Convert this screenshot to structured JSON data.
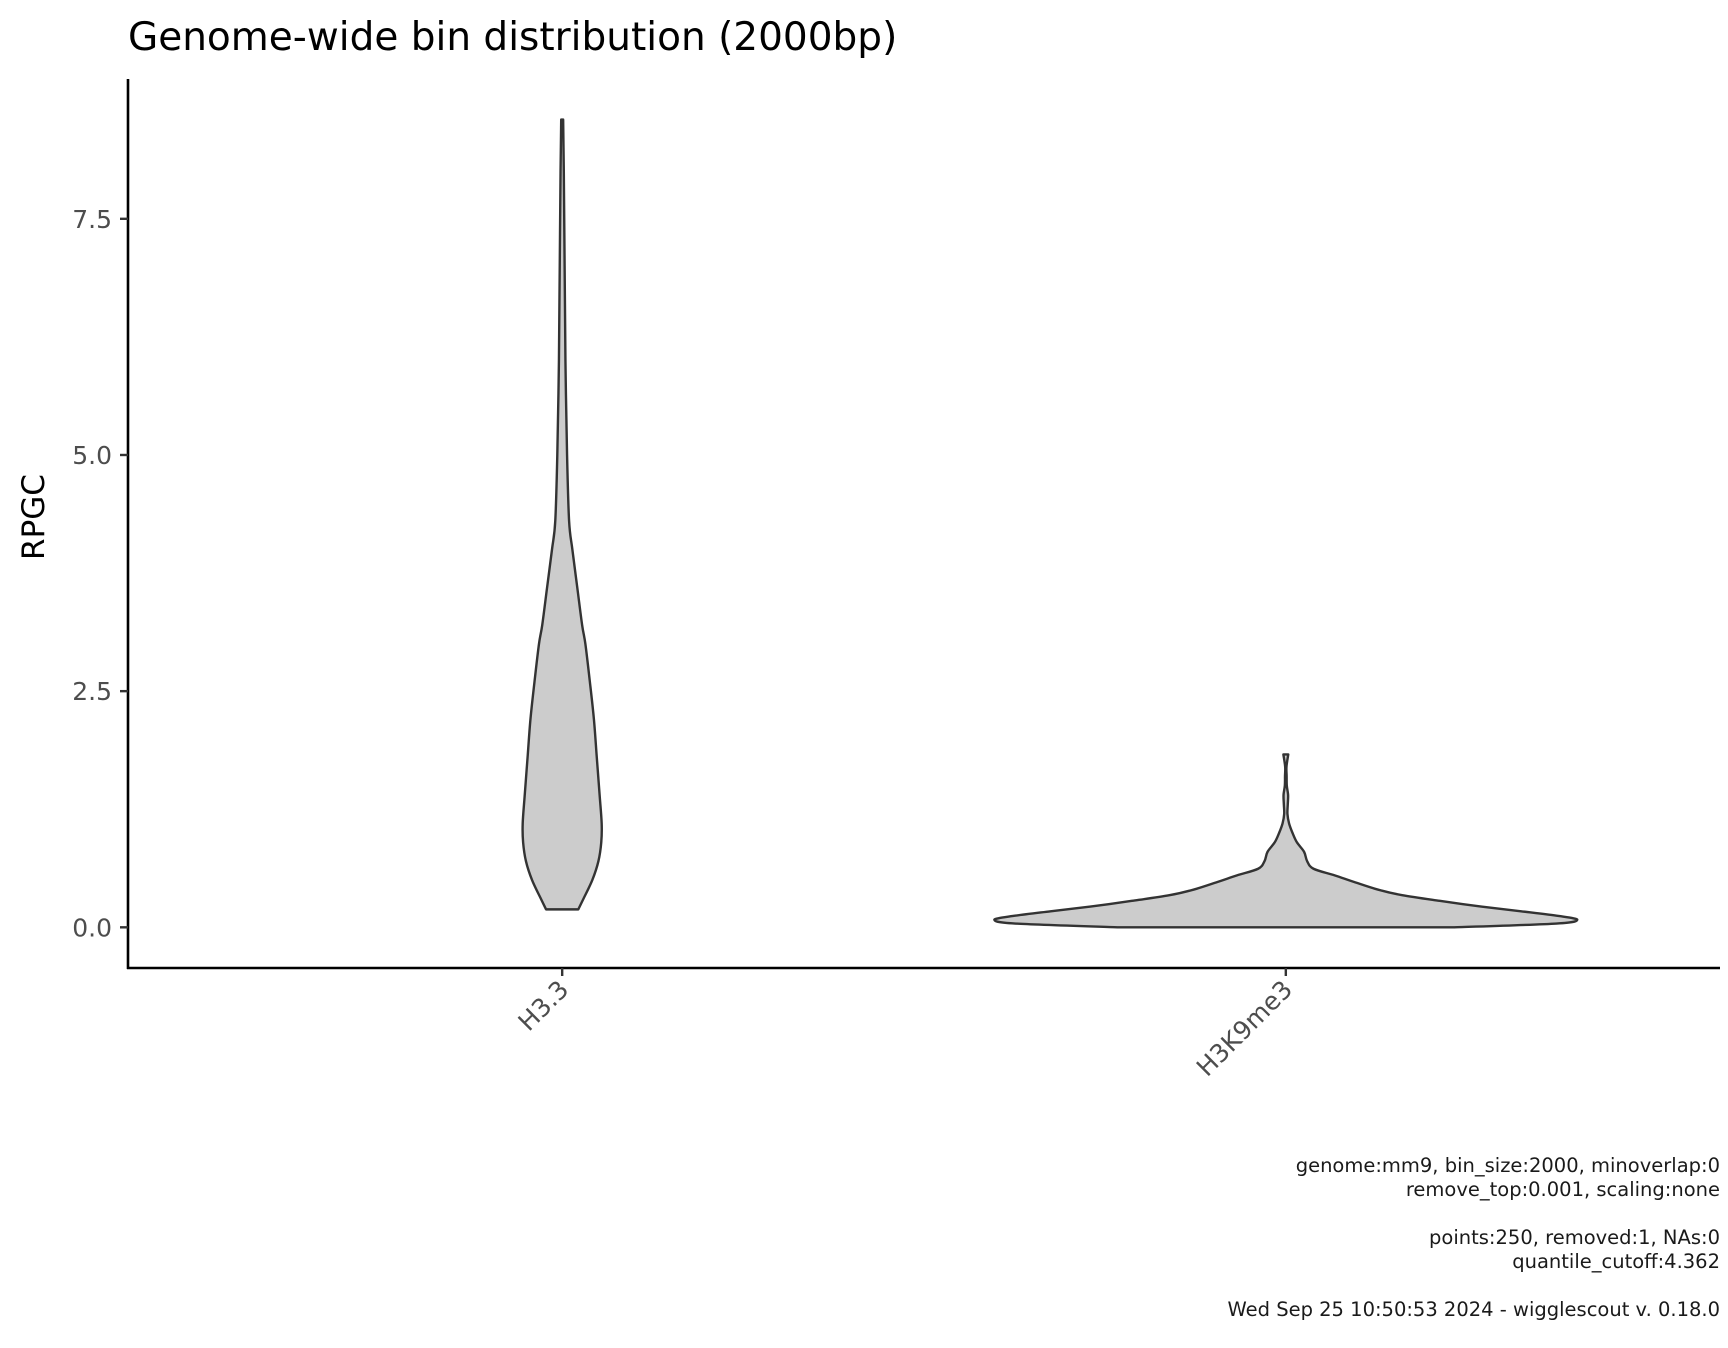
{
  "chart_data": {
    "type": "violin",
    "title": "Genome-wide bin distribution (2000bp)",
    "xlabel": "",
    "ylabel": "RPGC",
    "categories": [
      "H3.3",
      "H3K9me3"
    ],
    "ylim": [
      -0.42,
      8.98
    ],
    "yticks": [
      0.0,
      2.5,
      5.0,
      7.5
    ],
    "ytick_labels": [
      "0.0",
      "2.5",
      "5.0",
      "7.5"
    ],
    "xtick_rotation_deg": -45,
    "grid": false,
    "legend": "none",
    "fill_color": "#cccccc",
    "line_color": "#333333",
    "series": [
      {
        "category": "H3.3",
        "min": 0.19,
        "max": 8.55,
        "profile": [
          [
            0.19,
            0.198
          ],
          [
            0.3,
            0.26
          ],
          [
            0.5,
            0.37
          ],
          [
            0.7,
            0.445
          ],
          [
            0.9,
            0.48
          ],
          [
            1.1,
            0.485
          ],
          [
            1.4,
            0.46
          ],
          [
            1.8,
            0.425
          ],
          [
            2.2,
            0.39
          ],
          [
            2.6,
            0.34
          ],
          [
            3.0,
            0.285
          ],
          [
            3.2,
            0.245
          ],
          [
            3.6,
            0.185
          ],
          [
            4.0,
            0.125
          ],
          [
            4.3,
            0.085
          ],
          [
            5.0,
            0.06
          ],
          [
            6.0,
            0.04
          ],
          [
            7.0,
            0.03
          ],
          [
            8.0,
            0.02
          ],
          [
            8.55,
            0.012
          ]
        ]
      },
      {
        "category": "H3K9me3",
        "min": 0.0,
        "max": 1.83,
        "profile": [
          [
            0.0,
            2.07
          ],
          [
            0.04,
            3.325
          ],
          [
            0.08,
            3.58
          ],
          [
            0.12,
            3.35
          ],
          [
            0.17,
            2.89
          ],
          [
            0.22,
            2.4
          ],
          [
            0.28,
            1.89
          ],
          [
            0.34,
            1.43
          ],
          [
            0.4,
            1.13
          ],
          [
            0.48,
            0.84
          ],
          [
            0.55,
            0.6
          ],
          [
            0.62,
            0.34
          ],
          [
            0.7,
            0.262
          ],
          [
            0.8,
            0.224
          ],
          [
            0.9,
            0.136
          ],
          [
            1.0,
            0.082
          ],
          [
            1.1,
            0.04
          ],
          [
            1.2,
            0.02
          ],
          [
            1.3,
            0.024
          ],
          [
            1.4,
            0.028
          ],
          [
            1.5,
            0.012
          ],
          [
            1.6,
            0.01
          ],
          [
            1.7,
            0.008
          ],
          [
            1.83,
            0.03
          ]
        ]
      }
    ]
  },
  "caption": {
    "line1": "genome:mm9, bin_size:2000, minoverlap:0",
    "line2": "remove_top:0.001, scaling:none",
    "line3": "points:250, removed:1, NAs:0",
    "line4": "quantile_cutoff:4.362",
    "line5": "Wed Sep 25 10:50:53 2024 - wigglescout v. 0.18.0"
  }
}
